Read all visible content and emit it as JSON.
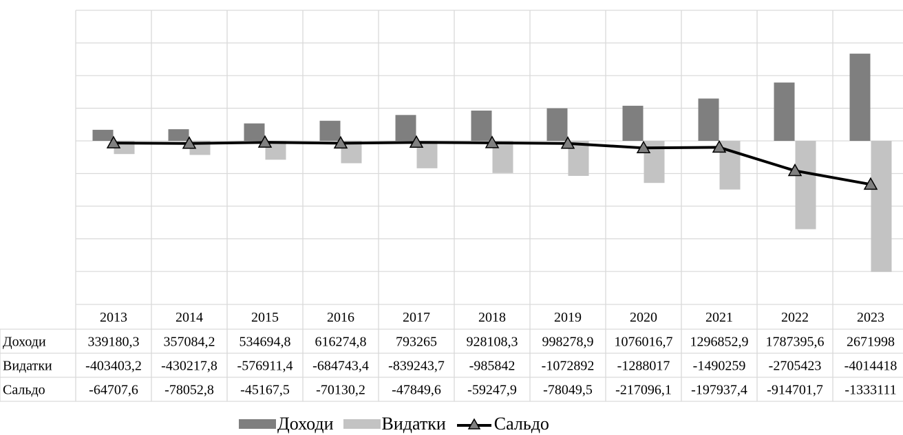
{
  "colors": {
    "income": "#7f7f7f",
    "expense": "#c3c3c3",
    "balance": "#000000",
    "marker": "#808080",
    "grid": "#d9d9d9"
  },
  "chart_data": {
    "type": "bar",
    "categories": [
      "2013",
      "2014",
      "2015",
      "2016",
      "2017",
      "2018",
      "2019",
      "2020",
      "2021",
      "2022",
      "2023"
    ],
    "series": [
      {
        "name": "Доходи",
        "type": "bar",
        "values": [
          339180.3,
          357084.2,
          534694.8,
          616274.8,
          793265,
          928108.3,
          998278.9,
          1076016.7,
          1296852.9,
          1787395.6,
          2671998
        ],
        "labels": [
          "339180,3",
          "357084,2",
          "534694,8",
          "616274,8",
          "793265",
          "928108,3",
          "998278,9",
          "1076016,7",
          "1296852,9",
          "1787395,6",
          "2671998"
        ]
      },
      {
        "name": "Видатки",
        "type": "bar",
        "values": [
          -403403.2,
          -430217.8,
          -576911.4,
          -684743.4,
          -839243.7,
          -985842,
          -1072892,
          -1288017,
          -1490259,
          -2705423,
          -4014418
        ],
        "labels": [
          "-403403,2",
          "-430217,8",
          "-576911,4",
          "-684743,4",
          "-839243,7",
          "-985842",
          "-1072892",
          "-1288017",
          "-1490259",
          "-2705423",
          "-4014418"
        ]
      },
      {
        "name": "Сальдо",
        "type": "line",
        "values": [
          -64707.6,
          -78052.8,
          -45167.5,
          -70130.2,
          -47849.6,
          -59247.9,
          -78049.5,
          -217096.1,
          -197937.4,
          -914701.7,
          -1333111
        ],
        "labels": [
          "-64707,6",
          "-78052,8",
          "-45167,5",
          "-70130,2",
          "-47849,6",
          "-59247,9",
          "-78049,5",
          "-217096,1",
          "-197937,4",
          "-914701,7",
          "-1333111"
        ]
      }
    ],
    "ylim": [
      -4000000,
      4000000
    ],
    "y_gridline_step": 1000000,
    "grid": true,
    "legend_position": "bottom",
    "data_table": true
  }
}
